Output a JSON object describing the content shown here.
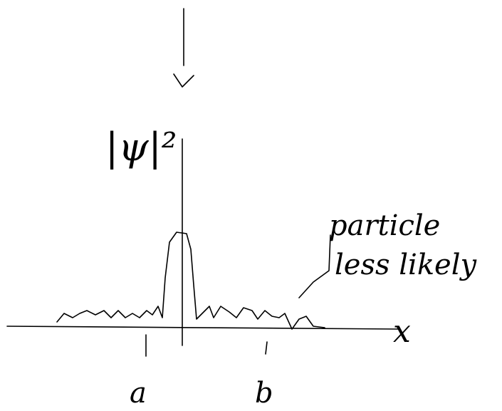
{
  "labels": {
    "y_axis": "|ψ|²",
    "annotation_line1": "particle",
    "annotation_line2": "less likely",
    "x_axis": "x",
    "point_a": "a",
    "point_b": "b"
  }
}
